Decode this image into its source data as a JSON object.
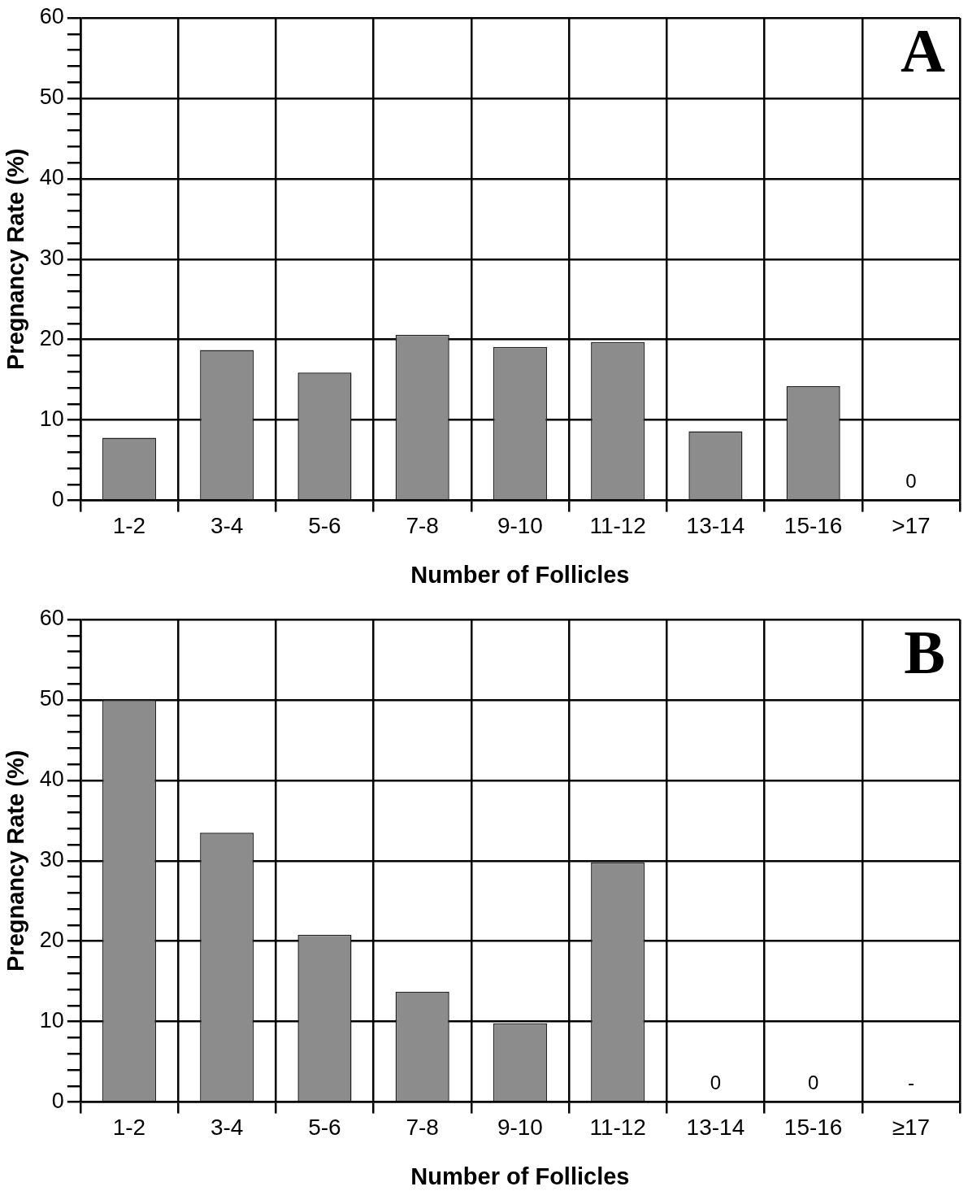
{
  "chart_data": [
    {
      "type": "bar",
      "categories": [
        "1-2",
        "3-4",
        "5-6",
        "7-8",
        "9-10",
        "11-12",
        "13-14",
        "15-16",
        ">17"
      ],
      "values": [
        7.8,
        18.7,
        15.9,
        20.6,
        19.1,
        19.7,
        8.6,
        14.2,
        0
      ],
      "value_labels": [
        null,
        null,
        null,
        null,
        null,
        null,
        null,
        null,
        "0"
      ],
      "color": "#8c8c8c",
      "xlabel": "Number of Follicles",
      "ylabel": "Pregnancy Rate (%)",
      "ylim": [
        0,
        60
      ],
      "yticks": [
        0,
        {
          "value": 2,
          "label": null
        },
        {
          "value": 4,
          "label": null
        },
        {
          "value": 6,
          "label": null
        },
        {
          "value": 8,
          "label": null
        },
        10,
        {
          "value": 12,
          "label": null
        },
        {
          "value": 14,
          "label": null
        },
        {
          "value": 16,
          "label": null
        },
        {
          "value": 18,
          "label": null
        },
        20,
        {
          "value": 22,
          "label": null
        },
        {
          "value": 24,
          "label": null
        },
        {
          "value": 26,
          "label": null
        },
        {
          "value": 28,
          "label": null
        },
        30,
        {
          "value": 32,
          "label": null
        },
        {
          "value": 34,
          "label": null
        },
        {
          "value": 36,
          "label": null
        },
        {
          "value": 38,
          "label": null
        },
        40,
        {
          "value": 42,
          "label": null
        },
        {
          "value": 44,
          "label": null
        },
        {
          "value": 46,
          "label": null
        },
        {
          "value": 48,
          "label": null
        },
        50,
        {
          "value": 52,
          "label": null
        },
        {
          "value": 54,
          "label": null
        },
        {
          "value": 56,
          "label": null
        },
        {
          "value": 58,
          "label": null
        },
        60
      ],
      "grid": true,
      "annotations": [
        "A"
      ]
    },
    {
      "type": "bar",
      "categories": [
        "1-2",
        "3-4",
        "5-6",
        "7-8",
        "9-10",
        "11-12",
        "13-14",
        "15-16",
        "≥17"
      ],
      "values": [
        50,
        33.5,
        20.8,
        13.7,
        9.8,
        29.8,
        0,
        0,
        null
      ],
      "value_labels": [
        null,
        null,
        null,
        null,
        null,
        null,
        "0",
        "0",
        "-"
      ],
      "color": "#8c8c8c",
      "xlabel": "Number of Follicles",
      "ylabel": "Pregnancy Rate (%)",
      "ylim": [
        0,
        60
      ],
      "yticks": [
        0,
        {
          "value": 2,
          "label": null
        },
        {
          "value": 4,
          "label": null
        },
        {
          "value": 6,
          "label": null
        },
        {
          "value": 8,
          "label": null
        },
        10,
        {
          "value": 12,
          "label": null
        },
        {
          "value": 14,
          "label": null
        },
        {
          "value": 16,
          "label": null
        },
        {
          "value": 18,
          "label": null
        },
        20,
        {
          "value": 22,
          "label": null
        },
        {
          "value": 24,
          "label": null
        },
        {
          "value": 26,
          "label": null
        },
        {
          "value": 28,
          "label": null
        },
        30,
        {
          "value": 32,
          "label": null
        },
        {
          "value": 34,
          "label": null
        },
        {
          "value": 36,
          "label": null
        },
        {
          "value": 38,
          "label": null
        },
        40,
        {
          "value": 42,
          "label": null
        },
        {
          "value": 44,
          "label": null
        },
        {
          "value": 46,
          "label": null
        },
        {
          "value": 48,
          "label": null
        },
        50,
        {
          "value": 52,
          "label": null
        },
        {
          "value": 54,
          "label": null
        },
        {
          "value": 56,
          "label": null
        },
        {
          "value": 58,
          "label": null
        },
        60
      ],
      "grid": true,
      "annotations": [
        "B"
      ]
    }
  ]
}
